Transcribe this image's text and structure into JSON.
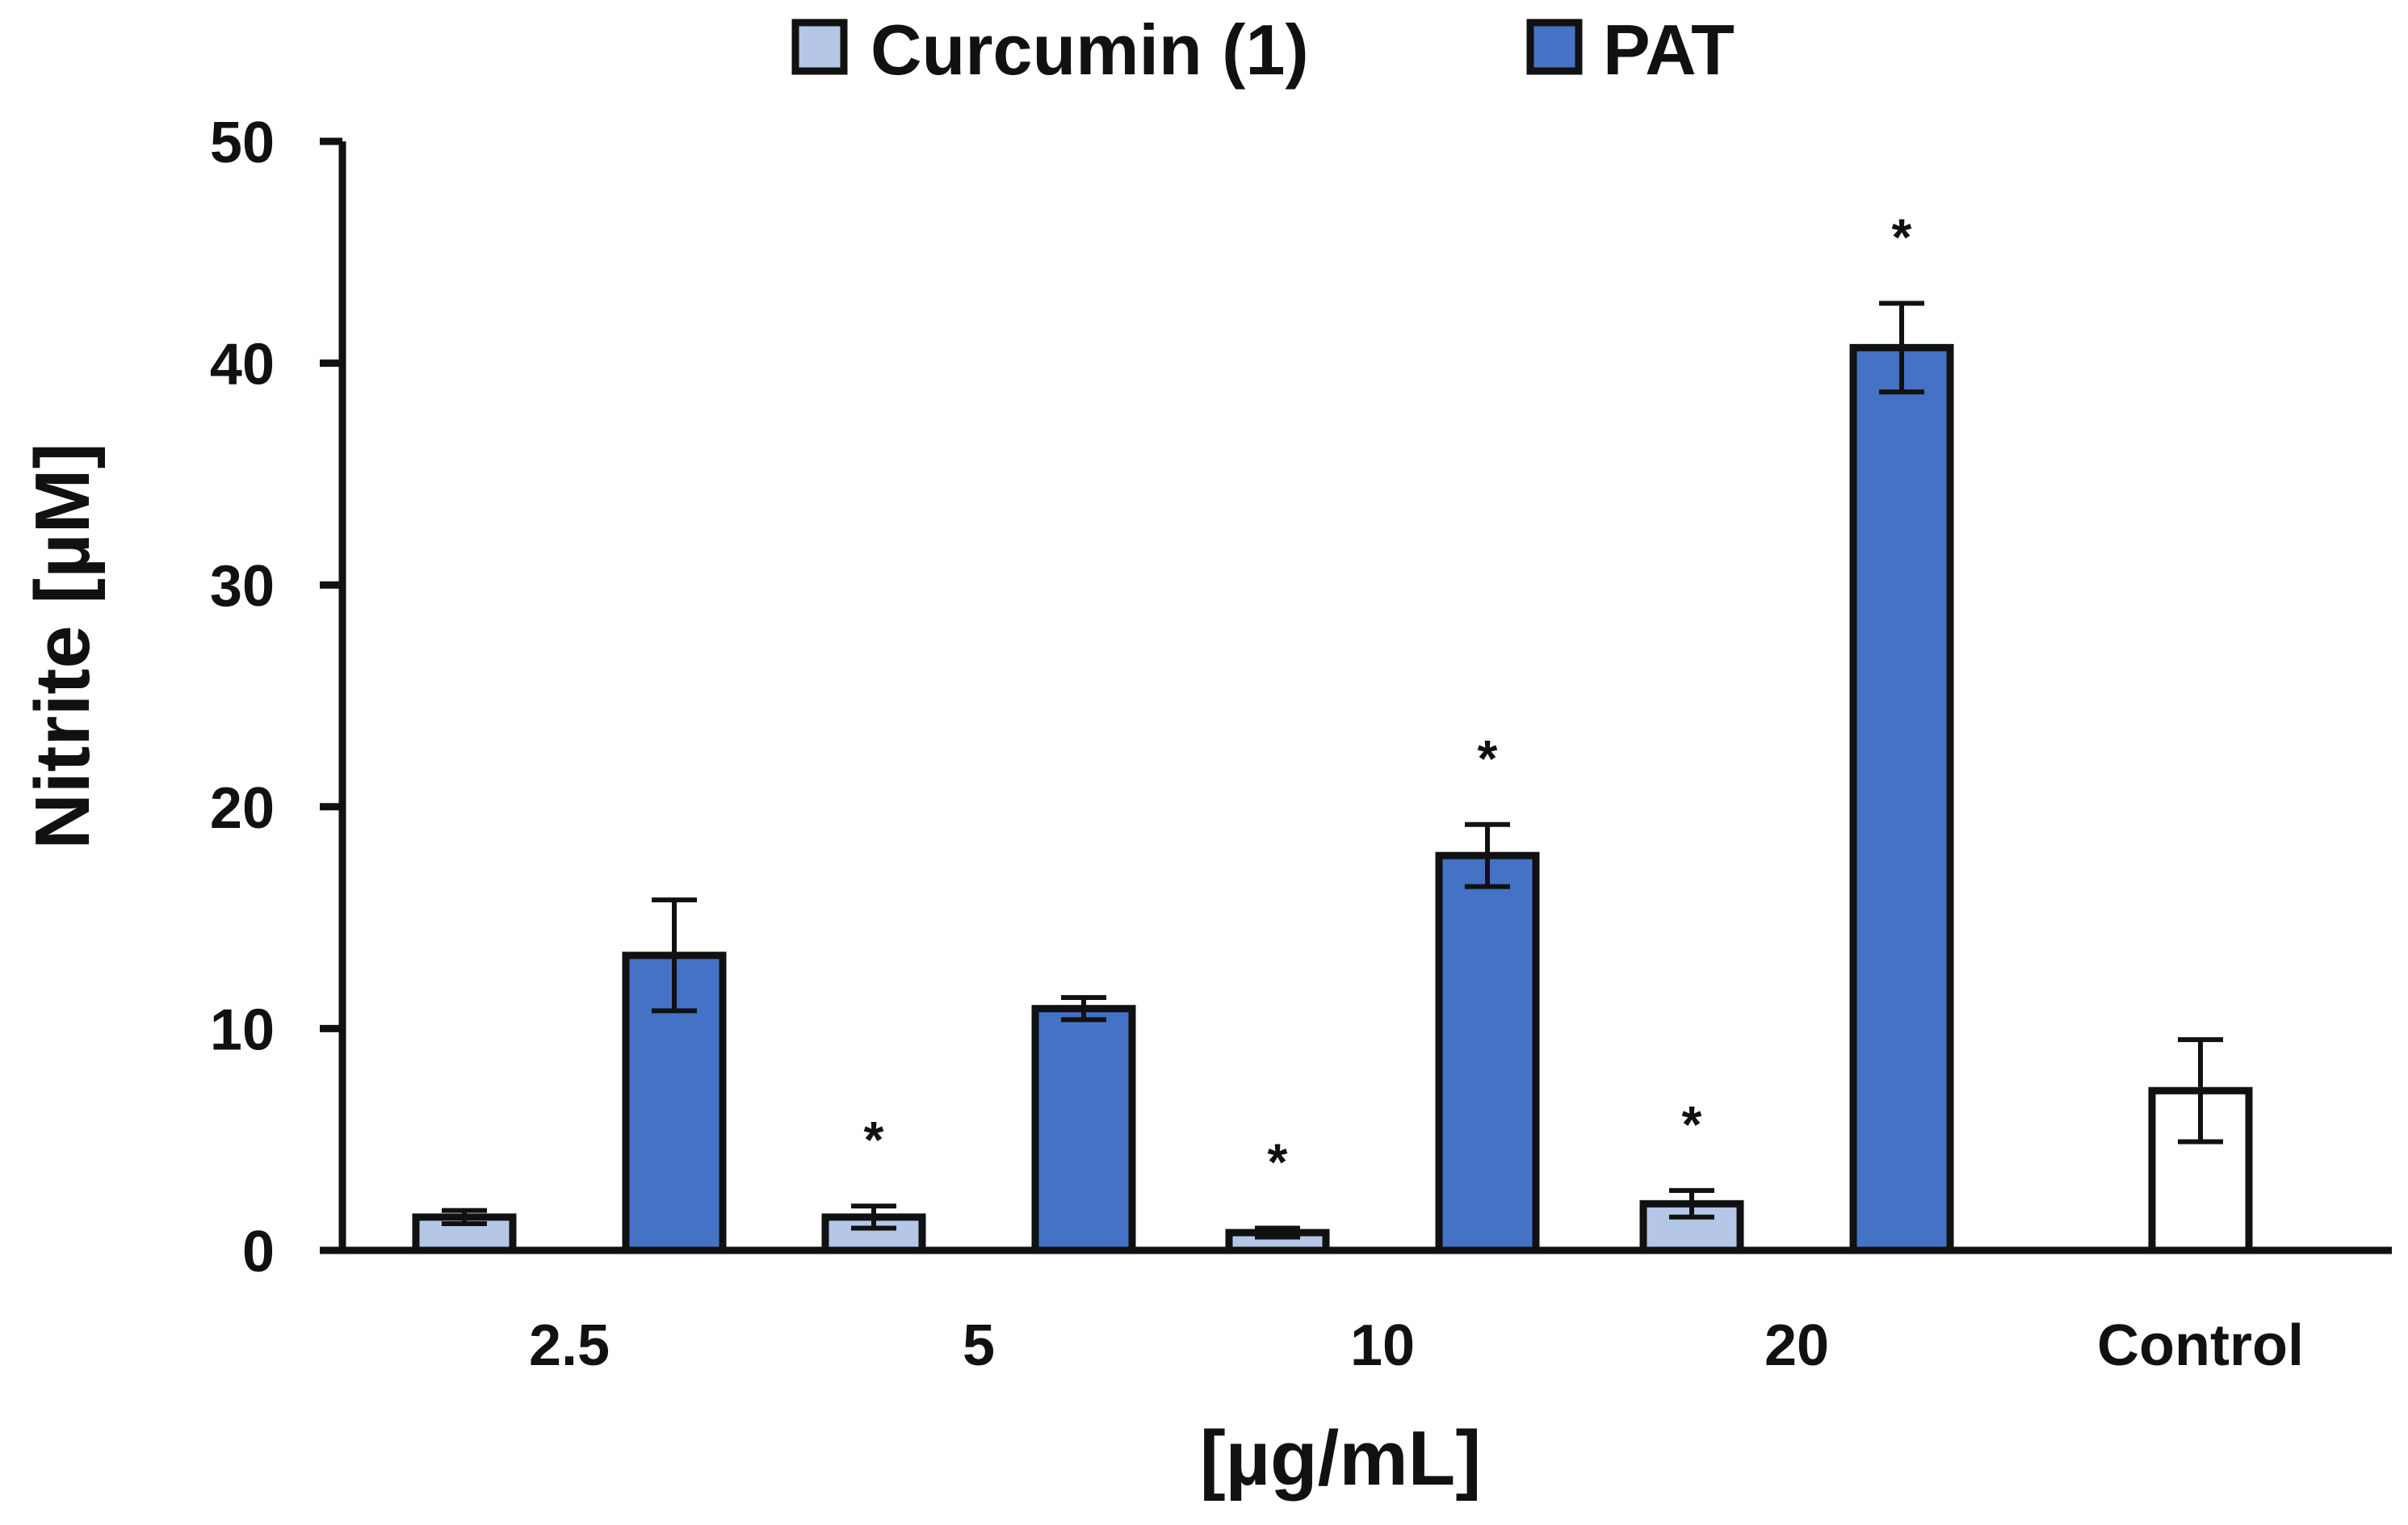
{
  "chart_data": {
    "type": "bar",
    "title": "",
    "xlabel": "[µg/mL]",
    "ylabel": "Nitrite [µM]",
    "ylim": [
      0,
      50
    ],
    "yticks": [
      0,
      10,
      20,
      30,
      40,
      50
    ],
    "categories": [
      "2.5",
      "5",
      "10",
      "20",
      "Control"
    ],
    "legend_position": "top-center",
    "series": [
      {
        "name": "Curcumin (1)",
        "color": "#b4c7e7",
        "values": [
          1.5,
          1.5,
          0.8,
          2.1,
          null
        ],
        "errors": [
          0.3,
          0.5,
          0.2,
          0.6,
          null
        ],
        "significant": [
          false,
          true,
          true,
          true,
          false
        ]
      },
      {
        "name": "PAT",
        "color": "#4472c4",
        "values": [
          13.3,
          10.9,
          17.8,
          40.7,
          null
        ],
        "errors": [
          2.5,
          0.5,
          1.4,
          2.0,
          null
        ],
        "significant": [
          false,
          false,
          true,
          true,
          false
        ]
      }
    ],
    "control": {
      "category": "Control",
      "color": "#ffffff",
      "value": 7.2,
      "error": 2.3
    },
    "significance_marker": "*"
  }
}
